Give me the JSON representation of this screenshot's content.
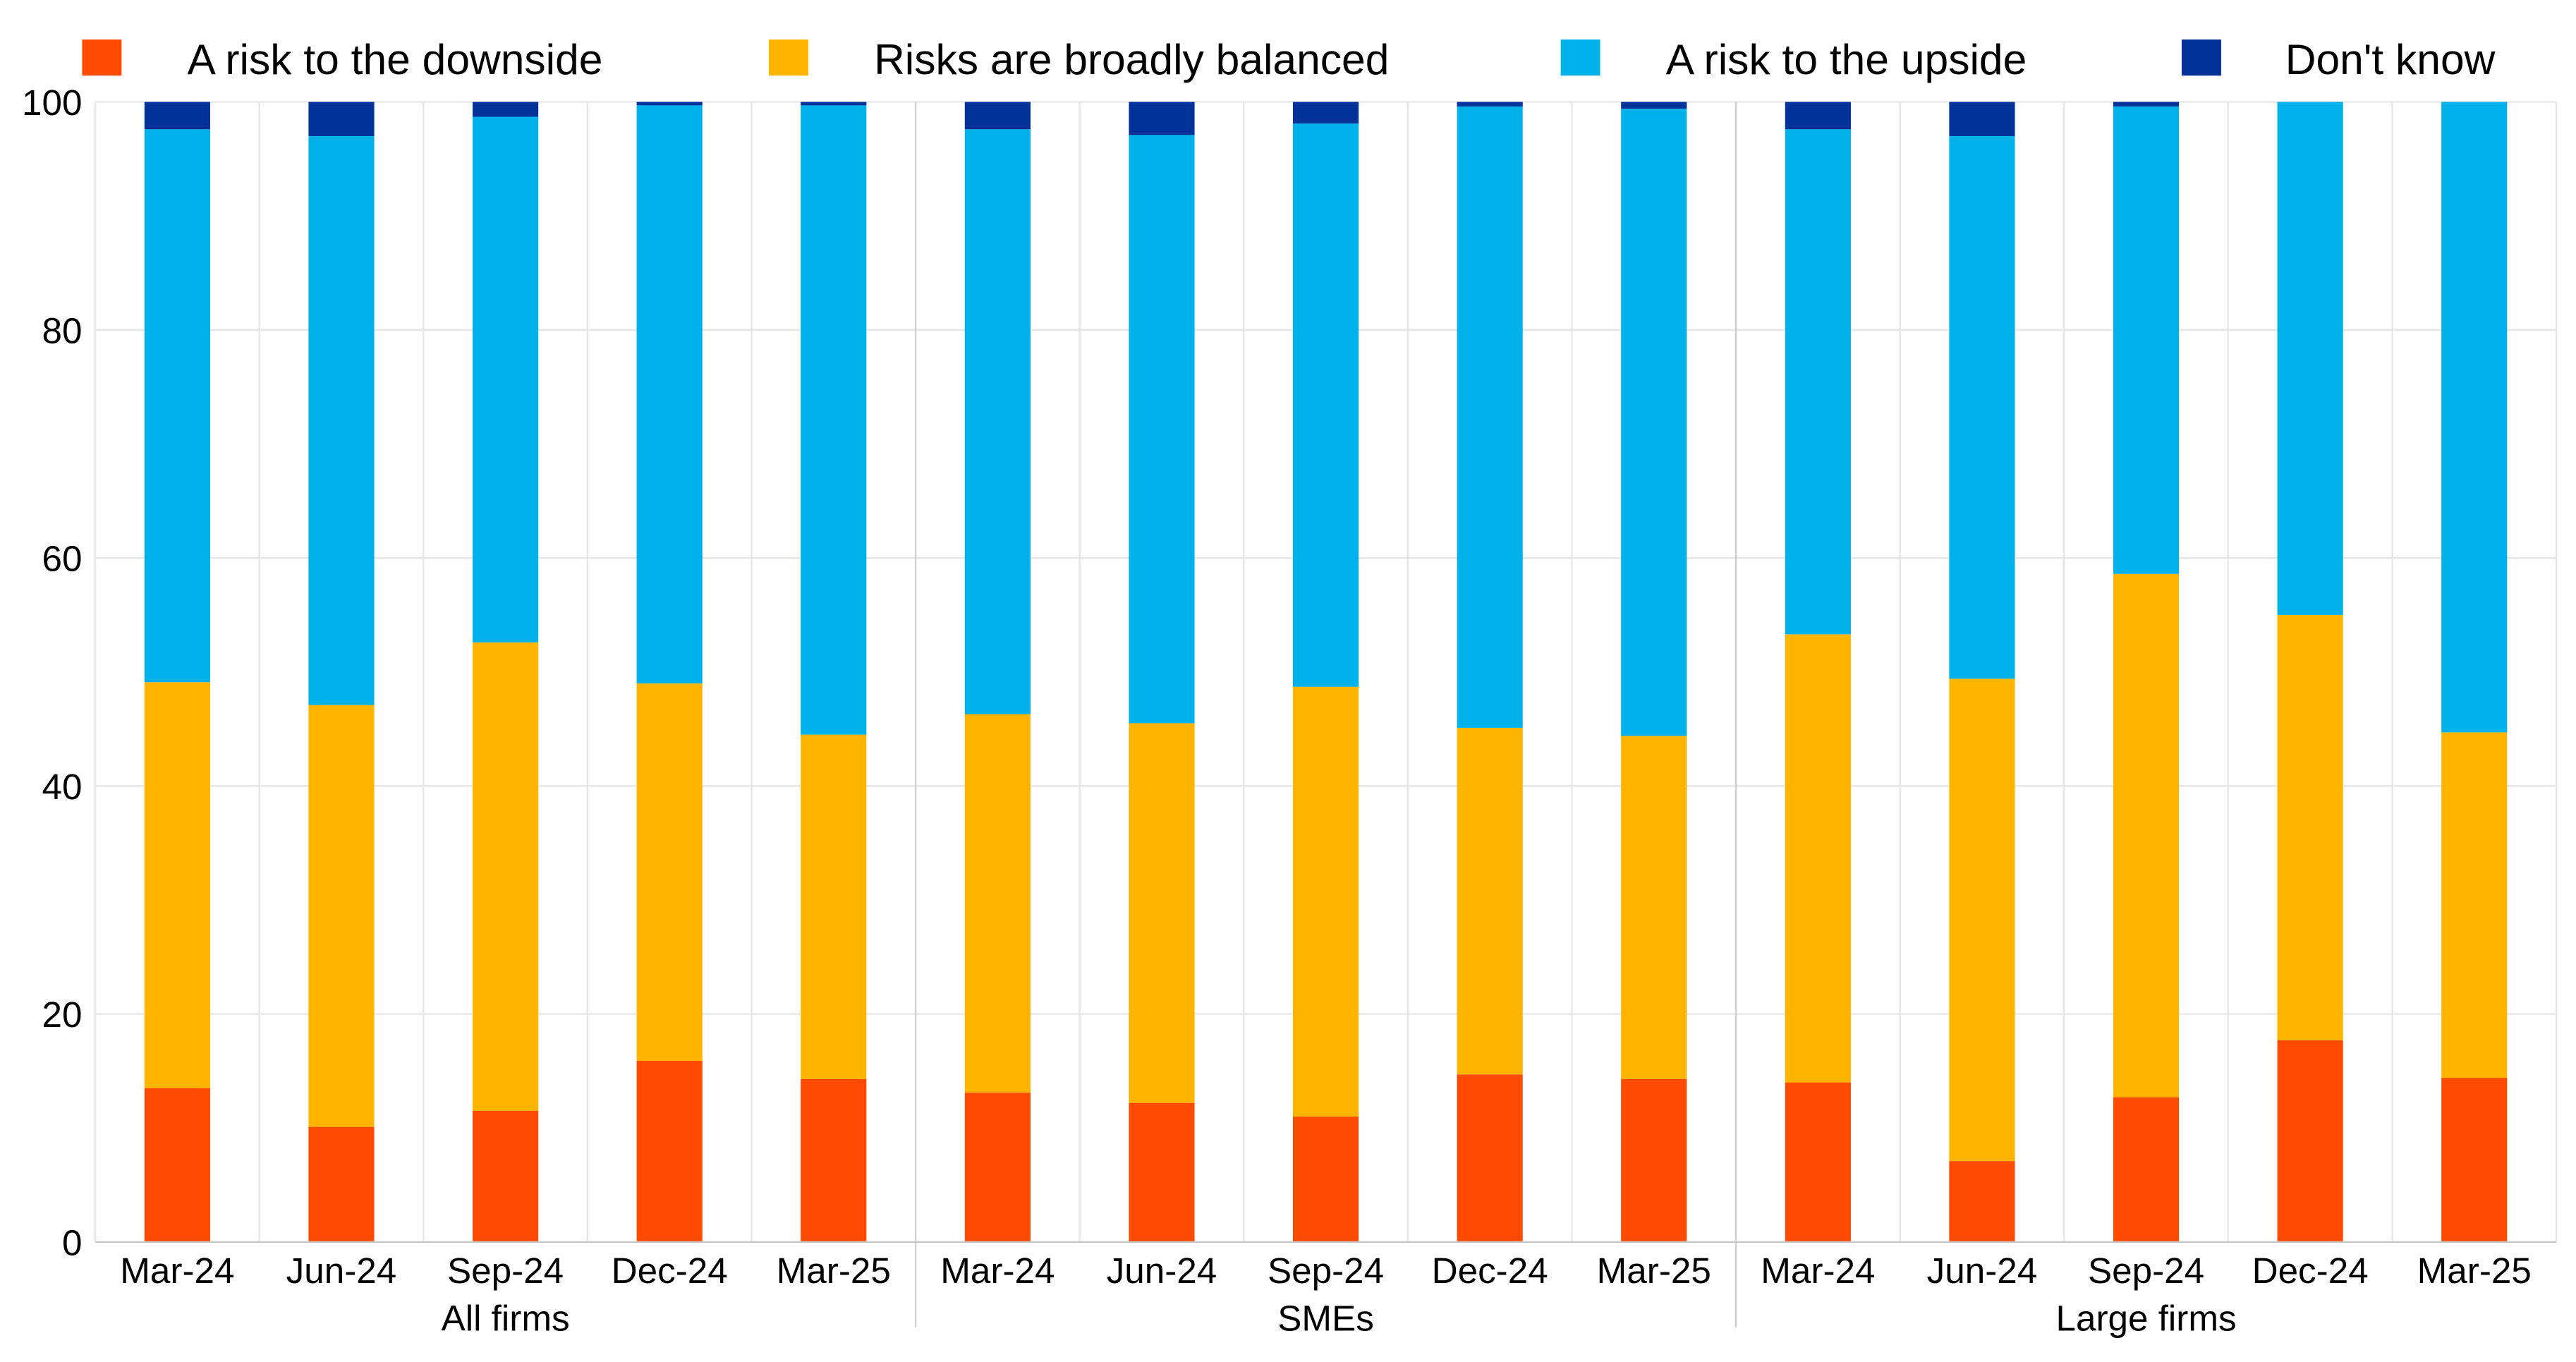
{
  "chart_data": {
    "type": "bar",
    "stacked": true,
    "title": "",
    "xlabel": "",
    "ylabel": "",
    "ylim": [
      0,
      100
    ],
    "yticks": [
      0,
      20,
      40,
      60,
      80,
      100
    ],
    "grid": true,
    "legend_placement": "top",
    "groups": [
      {
        "label": "All firms",
        "categories": [
          "Mar-24",
          "Jun-24",
          "Sep-24",
          "Dec-24",
          "Mar-25"
        ]
      },
      {
        "label": "SMEs",
        "categories": [
          "Mar-24",
          "Jun-24",
          "Sep-24",
          "Dec-24",
          "Mar-25"
        ]
      },
      {
        "label": "Large firms",
        "categories": [
          "Mar-24",
          "Jun-24",
          "Sep-24",
          "Dec-24",
          "Mar-25"
        ]
      }
    ],
    "series": [
      {
        "name": "A risk to the downside",
        "color": "#ff4b00",
        "values": [
          13.5,
          10.1,
          11.5,
          15.9,
          14.3,
          13.1,
          12.2,
          11.0,
          14.7,
          14.3,
          14.0,
          7.1,
          12.7,
          17.7,
          14.4
        ]
      },
      {
        "name": "Risks are broadly balanced",
        "color": "#ffb400",
        "values": [
          35.6,
          37.0,
          41.1,
          33.1,
          30.2,
          33.2,
          33.3,
          37.7,
          30.4,
          30.1,
          39.3,
          42.3,
          45.9,
          37.3,
          30.3
        ]
      },
      {
        "name": "A risk to the upside",
        "color": "#00b1ea",
        "values": [
          48.5,
          49.9,
          46.1,
          50.7,
          55.2,
          51.3,
          51.6,
          49.4,
          54.5,
          55.0,
          44.3,
          47.6,
          41.0,
          45.0,
          55.3
        ]
      },
      {
        "name": "Don't know",
        "color": "#003299",
        "values": [
          2.4,
          3.0,
          1.3,
          0.3,
          0.3,
          2.4,
          2.9,
          1.9,
          0.4,
          0.6,
          2.4,
          3.0,
          0.4,
          0.0,
          0.0
        ]
      }
    ]
  }
}
